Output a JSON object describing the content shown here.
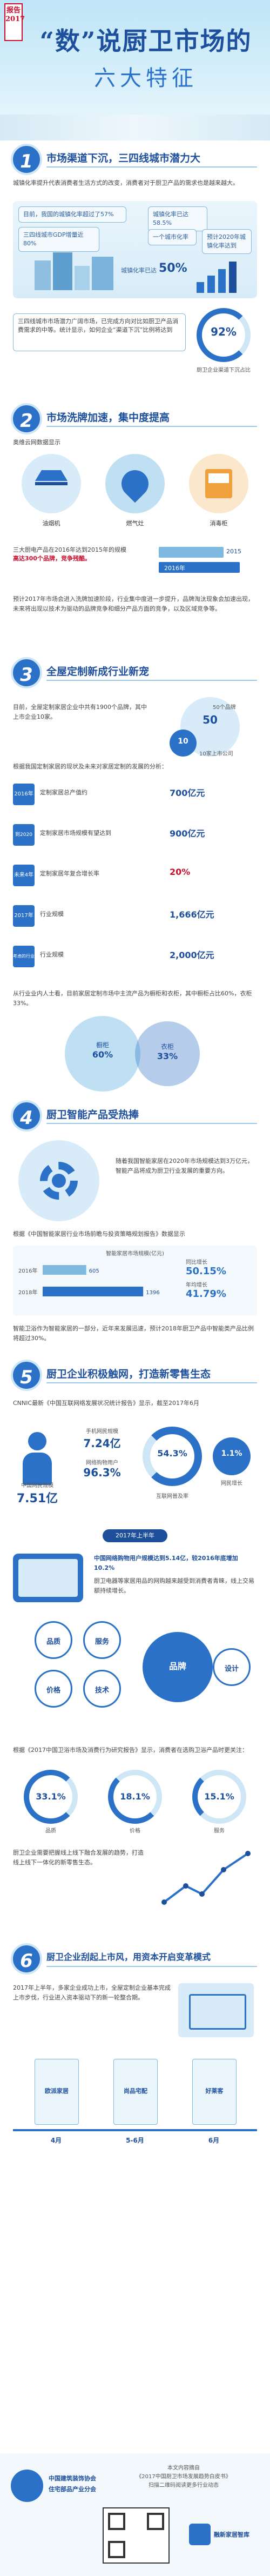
{
  "header": {
    "tag_line1": "报告",
    "tag_line2": "2017",
    "title": "“数”说厨卫市场的",
    "subtitle": "六大特征"
  },
  "s1": {
    "num": "1",
    "title": "市场渠道下沉，三四线城市潜力大",
    "intro": "城镇化率提升代表消费者生活方式的改变，消费者对于厨卫产品的需求也是越来越大。",
    "box1": "目前，我国的城镇化率超过了57%",
    "box2": "三四线城市GDP增量近80%",
    "box3": "城镇化率已达58.5%",
    "box4": "一个城市化率",
    "box5": "预计2020年城镇化率达到",
    "box6": "城镇化率已达",
    "pct1": "50%",
    "box7": "三四线城市市场占有厨卫产品的92%",
    "box8": "三四线城市所占市场的增长率达到了",
    "box9": "预计20%的增长速度",
    "box10": "市场化率"
  },
  "s1b": {
    "text": "三四线城市市场潜力广阔市场，已完成方向对比如厨卫产品消费需求的中等。统计显示，如何企业“渠道下沉”比例将达到",
    "pct": "92%",
    "pct_label": "厨卫企业渠道下沉占比"
  },
  "s2": {
    "num": "2",
    "title": "市场洗牌加速，集中度提高",
    "src": "奥维云网数据显示",
    "icons": [
      {
        "label": "油烟机"
      },
      {
        "label": "燃气灶"
      },
      {
        "label": "消毒柜"
      }
    ],
    "text1": "三大厨电产品在2016年达到2015年",
    "text2": "的规模",
    "text3": "高达300个品牌，竞争残酷。",
    "y2015": "2015",
    "y2016": "2016年",
    "text4": "预计2017年市场会进入洗牌加速阶段，行业集中度进一步提升，品牌淘汰现象会加速出现，未来将出现以技术为驱动的品牌竞争和细分产品方面的竞争，以及区域竞争等。"
  },
  "s3": {
    "num": "3",
    "title": "全屋定制新成行业新宠",
    "text1": "目前，全屋定制家居企业中共有1900个品牌，其中上市企业10家。",
    "c1_value": "50",
    "c1_label": "50个品牌",
    "c2_value": "10",
    "c2_label": "10家上市公司",
    "text2": "根据我国定制家居的现状及未来对家居定制的发展的分析：",
    "rows": [
      {
        "label": "2016年",
        "desc": "定制家居总产值约",
        "value": "700亿元"
      },
      {
        "label": "到2020年",
        "desc": "定制家居市场规模有望达到",
        "value": "900亿元"
      },
      {
        "label": "未来4年",
        "desc": "定制家居年复合增长率",
        "value": "20%"
      },
      {
        "label": "2017年",
        "desc": "行业规模",
        "value": "1,666亿元"
      },
      {
        "label": "考虑的行业",
        "desc": "行业规模",
        "value": "2,000亿元"
      }
    ],
    "text3": "从行业业内人士看，目前家居定制市场中主流产品为橱柜和衣柜，其中橱柜占比60%，衣柜33%。",
    "pie_a_label": "橱柜",
    "pie_a_value": "60%",
    "pie_b_label": "衣柜",
    "pie_b_value": "33%"
  },
  "s4": {
    "num": "4",
    "title": "厨卫智能产品受热捧",
    "text1": "随着我国智能家居在2020年市场规模达到3万亿元，智能产品将成为厨卫行业发展的重要方向。",
    "src": "根据《中国智能家居行业市场前瞻与投资策略规划报告》数据显示",
    "chart_title": "智能家居市场规模(亿元)",
    "growth_label": "同比增长",
    "growth_value": "50.15%",
    "growth_label2": "年均增长",
    "growth_value2": "41.79%",
    "text2": "智能卫浴作为智能家居的一部分，近年来发展迅速，预计2018年厨卫产品中智能类产品比例将超过30%。"
  },
  "s5": {
    "num": "5",
    "title": "厨卫企业积极触网，打造新零售生态",
    "src": "CNNIC最新《中国互联网络发展状况统计报告》显示，截至2017年6月",
    "stat1_label": "中国网民规模",
    "stat1_value": "7.51亿",
    "stat2_label": "手机网民规模",
    "stat2_value": "7.24亿",
    "stat3_label": "网络购物用户",
    "stat3_value": "96.3%",
    "stat4_label": "互联网普及率",
    "stat4_value": "54.3%",
    "stat5_label": "网民增长",
    "stat5_value": "1.1%",
    "half_label": "2017年上半年",
    "text1": "中国网络购物用户规模达到5.14亿，较2016年底增加10.2%",
    "text2": "厨卫电器等家居用品的网购越来越受到消费者青睐，线上交易额持续增长。",
    "src2": "根据《2017中国卫浴市场及消费行为研究报告》显示，消费者在选购卫浴产品时更关注：",
    "pcts": [
      {
        "value": "33.1%",
        "label": "品质"
      },
      {
        "value": "18.1%",
        "label": "价格"
      },
      {
        "value": "15.1%",
        "label": "服务"
      }
    ],
    "text3": "厨卫企业需要把握线上线下融合发展的趋势，打造线上线下一体化的新零售生态。",
    "circles": [
      "品质",
      "服务",
      "价格",
      "技术",
      "品牌",
      "设计"
    ]
  },
  "s6": {
    "num": "6",
    "title": "厨卫企业刮起上市风，用资本开启变革模式",
    "text1": "2017年上半年，多家企业成功上市，全屋定制企业基本完成上市步伐，行业进入资本驱动下的新一轮整合期。",
    "months": [
      "4月",
      "5-6月",
      "6月"
    ],
    "companies": [
      "欧派家居",
      "尚品宅配",
      "好莱客"
    ]
  },
  "footer": {
    "org1": "中国建筑装饰协会",
    "org2": "住宅部品产业分会",
    "source1": "本文内容摘自",
    "source2": "《2017中国厨卫市场发展趋势白皮书》",
    "source3": "扫描二维码阅读更多行业动态",
    "brand": "融新家居智库"
  },
  "colors": {
    "primary": "#1d4f9c",
    "accent": "#2b71c7",
    "red": "#c8102e",
    "light": "#cfe6f7"
  }
}
